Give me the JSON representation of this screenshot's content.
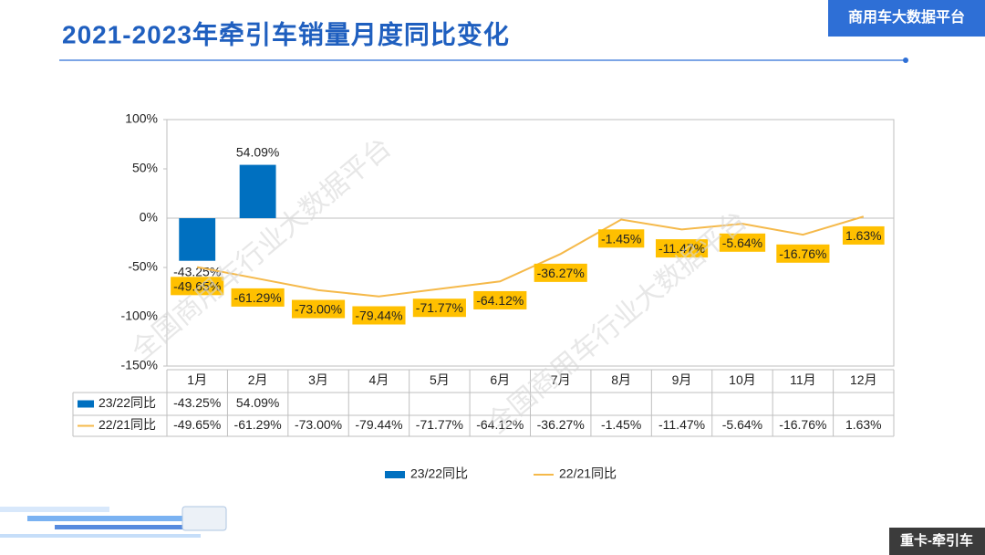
{
  "header": {
    "title": "2021-2023年牵引车销量月度同比变化",
    "badge": "商用车大数据平台",
    "footer": "重卡-牵引车",
    "watermark": "全国商用车行业大数据平台"
  },
  "chart_data": {
    "type": "bar-line",
    "categories": [
      "1月",
      "2月",
      "3月",
      "4月",
      "5月",
      "6月",
      "7月",
      "8月",
      "9月",
      "10月",
      "11月",
      "12月"
    ],
    "series": [
      {
        "name": "23/22同比",
        "type": "bar",
        "color": "#0070c0",
        "values": [
          -43.25,
          54.09,
          null,
          null,
          null,
          null,
          null,
          null,
          null,
          null,
          null,
          null
        ],
        "value_labels": [
          "-43.25%",
          "54.09%",
          null,
          null,
          null,
          null,
          null,
          null,
          null,
          null,
          null,
          null
        ]
      },
      {
        "name": "22/21同比",
        "type": "line",
        "color": "#f5b94a",
        "values": [
          -49.65,
          -61.29,
          -73.0,
          -79.44,
          -71.77,
          -64.12,
          -36.27,
          -1.45,
          -11.47,
          -5.64,
          -16.76,
          1.63
        ],
        "value_labels": [
          "-49.65%",
          "-61.29%",
          "-73.00%",
          "-79.44%",
          "-71.77%",
          "-64.12%",
          "-36.27%",
          "-1.45%",
          "-11.47%",
          "-5.64%",
          "-16.76%",
          "1.63%"
        ]
      }
    ],
    "ylim": [
      -150,
      100
    ],
    "yticks": [
      {
        "value": -150,
        "label": "-150%"
      },
      {
        "value": -100,
        "label": "-100%"
      },
      {
        "value": -50,
        "label": "-50%"
      },
      {
        "value": 0,
        "label": "0%"
      },
      {
        "value": 50,
        "label": "50%"
      },
      {
        "value": 100,
        "label": "100%"
      }
    ],
    "data_table": true
  }
}
